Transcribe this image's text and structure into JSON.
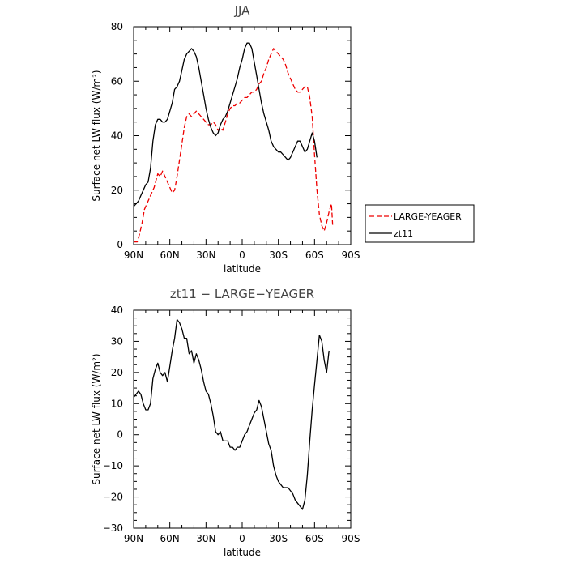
{
  "chart_data": [
    {
      "type": "line",
      "title": "JJA",
      "xlabel": "latitude",
      "ylabel": "Surface net LW flux (W/m²)",
      "ylim": [
        0,
        80
      ],
      "yticks": [
        "0",
        "20",
        "40",
        "60",
        "80"
      ],
      "xticks": [
        "90N",
        "60N",
        "30N",
        "0",
        "30S",
        "60S",
        "90S"
      ],
      "legend_position": "right",
      "series": [
        {
          "name": "LARGE-YEAGER",
          "color": "#ee0000",
          "dash": "dashed",
          "points": [
            [
              -90,
              1
            ],
            [
              -87,
              1
            ],
            [
              -85,
              4
            ],
            [
              -83,
              8
            ],
            [
              -81,
              13
            ],
            [
              -78,
              16
            ],
            [
              -76,
              18
            ],
            [
              -73,
              21
            ],
            [
              -70,
              26
            ],
            [
              -68,
              25
            ],
            [
              -66,
              27
            ],
            [
              -64,
              25
            ],
            [
              -62,
              23
            ],
            [
              -60,
              21
            ],
            [
              -58,
              19
            ],
            [
              -56,
              20
            ],
            [
              -54,
              25
            ],
            [
              -52,
              31
            ],
            [
              -50,
              37
            ],
            [
              -48,
              43
            ],
            [
              -46,
              47
            ],
            [
              -44,
              48
            ],
            [
              -42,
              47
            ],
            [
              -40,
              48
            ],
            [
              -38,
              49
            ],
            [
              -36,
              48
            ],
            [
              -34,
              47
            ],
            [
              -32,
              46
            ],
            [
              -30,
              45
            ],
            [
              -28,
              44
            ],
            [
              -26,
              44
            ],
            [
              -24,
              45
            ],
            [
              -22,
              44
            ],
            [
              -20,
              42
            ],
            [
              -18,
              43
            ],
            [
              -16,
              42
            ],
            [
              -14,
              45
            ],
            [
              -12,
              48
            ],
            [
              -10,
              50
            ],
            [
              -8,
              51
            ],
            [
              -6,
              51
            ],
            [
              -4,
              52
            ],
            [
              -2,
              52
            ],
            [
              0,
              53
            ],
            [
              2,
              54
            ],
            [
              4,
              54
            ],
            [
              6,
              55
            ],
            [
              8,
              56
            ],
            [
              10,
              56
            ],
            [
              12,
              57
            ],
            [
              14,
              59
            ],
            [
              16,
              60
            ],
            [
              18,
              63
            ],
            [
              20,
              65
            ],
            [
              22,
              68
            ],
            [
              24,
              70
            ],
            [
              26,
              72
            ],
            [
              28,
              71
            ],
            [
              30,
              70
            ],
            [
              32,
              69
            ],
            [
              34,
              68
            ],
            [
              36,
              66
            ],
            [
              38,
              63
            ],
            [
              40,
              61
            ],
            [
              42,
              59
            ],
            [
              44,
              57
            ],
            [
              46,
              56
            ],
            [
              48,
              56
            ],
            [
              50,
              57
            ],
            [
              52,
              58
            ],
            [
              54,
              58
            ],
            [
              56,
              54
            ],
            [
              58,
              47
            ],
            [
              60,
              33
            ],
            [
              62,
              20
            ],
            [
              64,
              11
            ],
            [
              66,
              7
            ],
            [
              68,
              5
            ],
            [
              70,
              8
            ],
            [
              72,
              12
            ],
            [
              74,
              15
            ],
            [
              75,
              7
            ]
          ]
        },
        {
          "name": "zt11",
          "color": "#000000",
          "dash": "solid",
          "points": [
            [
              -90,
              14
            ],
            [
              -88,
              15
            ],
            [
              -86,
              16
            ],
            [
              -84,
              18
            ],
            [
              -82,
              20
            ],
            [
              -80,
              22
            ],
            [
              -78,
              23
            ],
            [
              -76,
              28
            ],
            [
              -74,
              38
            ],
            [
              -72,
              44
            ],
            [
              -70,
              46
            ],
            [
              -68,
              46
            ],
            [
              -66,
              45
            ],
            [
              -64,
              45
            ],
            [
              -62,
              46
            ],
            [
              -60,
              49
            ],
            [
              -58,
              52
            ],
            [
              -56,
              57
            ],
            [
              -54,
              58
            ],
            [
              -52,
              60
            ],
            [
              -50,
              64
            ],
            [
              -48,
              68
            ],
            [
              -46,
              70
            ],
            [
              -44,
              71
            ],
            [
              -42,
              72
            ],
            [
              -40,
              71
            ],
            [
              -38,
              69
            ],
            [
              -36,
              65
            ],
            [
              -34,
              60
            ],
            [
              -32,
              55
            ],
            [
              -30,
              50
            ],
            [
              -28,
              46
            ],
            [
              -26,
              43
            ],
            [
              -24,
              41
            ],
            [
              -22,
              40
            ],
            [
              -20,
              41
            ],
            [
              -18,
              44
            ],
            [
              -16,
              46
            ],
            [
              -14,
              47
            ],
            [
              -12,
              49
            ],
            [
              -10,
              52
            ],
            [
              -8,
              55
            ],
            [
              -6,
              58
            ],
            [
              -4,
              61
            ],
            [
              -2,
              65
            ],
            [
              0,
              68
            ],
            [
              2,
              72
            ],
            [
              4,
              74
            ],
            [
              6,
              74
            ],
            [
              8,
              72
            ],
            [
              10,
              67
            ],
            [
              12,
              62
            ],
            [
              14,
              57
            ],
            [
              16,
              52
            ],
            [
              18,
              48
            ],
            [
              20,
              45
            ],
            [
              22,
              42
            ],
            [
              24,
              38
            ],
            [
              26,
              36
            ],
            [
              28,
              35
            ],
            [
              30,
              34
            ],
            [
              32,
              34
            ],
            [
              34,
              33
            ],
            [
              36,
              32
            ],
            [
              38,
              31
            ],
            [
              40,
              32
            ],
            [
              42,
              34
            ],
            [
              44,
              36
            ],
            [
              46,
              38
            ],
            [
              48,
              38
            ],
            [
              50,
              36
            ],
            [
              52,
              34
            ],
            [
              54,
              35
            ],
            [
              56,
              38
            ],
            [
              58,
              41
            ],
            [
              60,
              38
            ],
            [
              62,
              32
            ]
          ]
        }
      ]
    },
    {
      "type": "line",
      "title": "zt11 − LARGE−YEAGER",
      "xlabel": "latitude",
      "ylabel": "Surface net LW flux (W/m²)",
      "ylim": [
        -30,
        40
      ],
      "yticks": [
        "−30",
        "−20",
        "−10",
        "0",
        "10",
        "20",
        "30",
        "40"
      ],
      "xticks": [
        "90N",
        "60N",
        "30N",
        "0",
        "30S",
        "60S",
        "90S"
      ],
      "series": [
        {
          "color": "#000000",
          "dash": "solid",
          "points": [
            [
              -90,
              12
            ],
            [
              -88,
              13
            ],
            [
              -86,
              14
            ],
            [
              -84,
              13
            ],
            [
              -82,
              10
            ],
            [
              -80,
              8
            ],
            [
              -78,
              8
            ],
            [
              -76,
              10
            ],
            [
              -74,
              18
            ],
            [
              -72,
              21
            ],
            [
              -70,
              23
            ],
            [
              -68,
              20
            ],
            [
              -66,
              19
            ],
            [
              -64,
              20
            ],
            [
              -62,
              17
            ],
            [
              -60,
              22
            ],
            [
              -58,
              27
            ],
            [
              -56,
              31
            ],
            [
              -54,
              37
            ],
            [
              -52,
              36
            ],
            [
              -50,
              34
            ],
            [
              -48,
              31
            ],
            [
              -46,
              31
            ],
            [
              -44,
              26
            ],
            [
              -42,
              27
            ],
            [
              -40,
              23
            ],
            [
              -38,
              26
            ],
            [
              -36,
              24
            ],
            [
              -34,
              21
            ],
            [
              -32,
              17
            ],
            [
              -30,
              14
            ],
            [
              -28,
              13
            ],
            [
              -26,
              10
            ],
            [
              -24,
              6
            ],
            [
              -22,
              1
            ],
            [
              -20,
              0
            ],
            [
              -18,
              1
            ],
            [
              -16,
              -2
            ],
            [
              -14,
              -2
            ],
            [
              -12,
              -2
            ],
            [
              -10,
              -4
            ],
            [
              -8,
              -4
            ],
            [
              -6,
              -5
            ],
            [
              -4,
              -4
            ],
            [
              -2,
              -4
            ],
            [
              0,
              -2
            ],
            [
              2,
              0
            ],
            [
              4,
              1
            ],
            [
              6,
              3
            ],
            [
              8,
              5
            ],
            [
              10,
              7
            ],
            [
              12,
              8
            ],
            [
              14,
              11
            ],
            [
              16,
              9
            ],
            [
              18,
              5
            ],
            [
              20,
              1
            ],
            [
              22,
              -3
            ],
            [
              24,
              -5
            ],
            [
              26,
              -10
            ],
            [
              28,
              -13
            ],
            [
              30,
              -15
            ],
            [
              32,
              -16
            ],
            [
              34,
              -17
            ],
            [
              36,
              -17
            ],
            [
              38,
              -17
            ],
            [
              40,
              -18
            ],
            [
              42,
              -19
            ],
            [
              44,
              -21
            ],
            [
              46,
              -22
            ],
            [
              48,
              -23
            ],
            [
              50,
              -24
            ],
            [
              52,
              -21
            ],
            [
              54,
              -13
            ],
            [
              56,
              -2
            ],
            [
              58,
              8
            ],
            [
              60,
              16
            ],
            [
              62,
              24
            ],
            [
              64,
              32
            ],
            [
              66,
              30
            ],
            [
              68,
              24
            ],
            [
              70,
              20
            ],
            [
              72,
              27
            ]
          ]
        }
      ]
    }
  ]
}
